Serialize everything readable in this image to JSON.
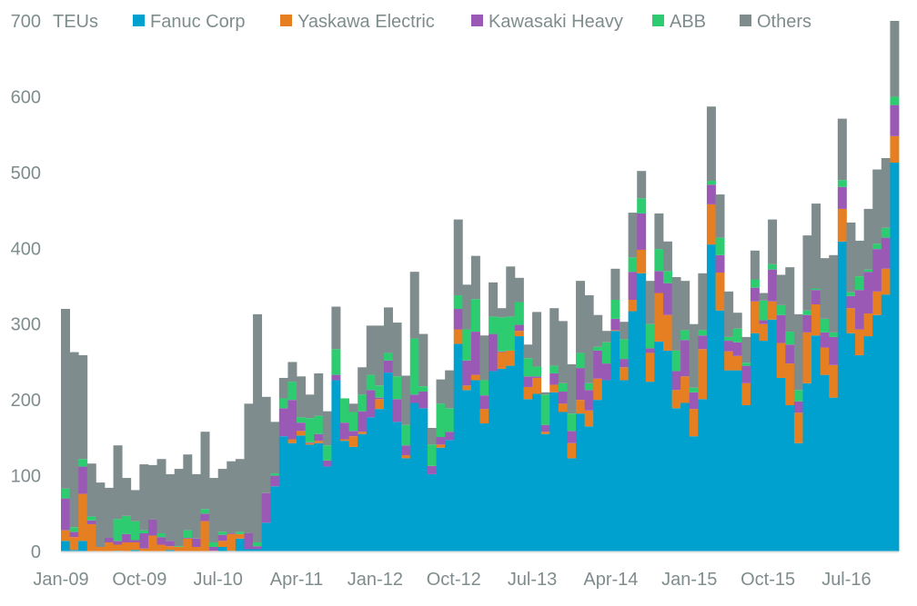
{
  "chart_data": {
    "type": "bar",
    "stacked": true,
    "title": "",
    "ylabel": "TEUs",
    "xlabel": "",
    "ylim": [
      0,
      700
    ],
    "yticks": [
      0,
      100,
      200,
      300,
      400,
      500,
      600,
      700
    ],
    "xtick_labels": [
      "Jan-09",
      "Oct-09",
      "Jul-10",
      "Apr-11",
      "Jan-12",
      "Oct-12",
      "Jul-13",
      "Apr-14",
      "Jan-15",
      "Oct-15",
      "Jul-16"
    ],
    "grid": false,
    "legend_position": "top",
    "categories": [
      "Jan-09",
      "Feb-09",
      "Mar-09",
      "Apr-09",
      "May-09",
      "Jun-09",
      "Jul-09",
      "Aug-09",
      "Sep-09",
      "Oct-09",
      "Nov-09",
      "Dec-09",
      "Jan-10",
      "Feb-10",
      "Mar-10",
      "Apr-10",
      "May-10",
      "Jun-10",
      "Jul-10",
      "Aug-10",
      "Sep-10",
      "Oct-10",
      "Nov-10",
      "Dec-10",
      "Jan-11",
      "Feb-11",
      "Mar-11",
      "Apr-11",
      "May-11",
      "Jun-11",
      "Jul-11",
      "Aug-11",
      "Sep-11",
      "Oct-11",
      "Nov-11",
      "Dec-11",
      "Jan-12",
      "Feb-12",
      "Mar-12",
      "Apr-12",
      "May-12",
      "Jun-12",
      "Jul-12",
      "Aug-12",
      "Sep-12",
      "Oct-12",
      "Nov-12",
      "Dec-12",
      "Jan-13",
      "Feb-13",
      "Mar-13",
      "Apr-13",
      "May-13",
      "Jun-13",
      "Jul-13",
      "Aug-13",
      "Sep-13",
      "Oct-13",
      "Nov-13",
      "Dec-13",
      "Jan-14",
      "Feb-14",
      "Mar-14",
      "Apr-14",
      "May-14",
      "Jun-14",
      "Jul-14",
      "Aug-14",
      "Sep-14",
      "Oct-14",
      "Nov-14",
      "Dec-14",
      "Jan-15",
      "Feb-15",
      "Mar-15",
      "Apr-15",
      "May-15",
      "Jun-15",
      "Jul-15",
      "Aug-15",
      "Sep-15",
      "Oct-15",
      "Nov-15",
      "Dec-15",
      "Jan-16",
      "Feb-16",
      "Mar-16",
      "Apr-16",
      "May-16",
      "Jun-16",
      "Jul-16",
      "Aug-16",
      "Sep-16",
      "Oct-16",
      "Nov-16",
      "Dec-16"
    ],
    "series": [
      {
        "name": "Fanuc Corp",
        "color": "#00a0cf",
        "values": [
          14,
          2,
          14,
          0,
          0,
          0,
          1,
          0,
          2,
          0,
          0,
          0,
          2,
          0,
          0,
          0,
          0,
          0,
          6,
          1,
          17,
          3,
          3,
          38,
          86,
          152,
          143,
          153,
          141,
          143,
          112,
          226,
          146,
          138,
          155,
          177,
          188,
          236,
          171,
          123,
          196,
          189,
          102,
          137,
          147,
          274,
          213,
          226,
          169,
          238,
          241,
          245,
          284,
          201,
          208,
          155,
          210,
          184,
          123,
          182,
          165,
          200,
          226,
          291,
          226,
          317,
          367,
          224,
          277,
          265,
          189,
          196,
          152,
          201,
          405,
          318,
          239,
          239,
          193,
          288,
          278,
          306,
          229,
          193,
          143,
          222,
          285,
          233,
          203,
          409,
          288,
          259,
          284,
          312,
          339,
          513
        ]
      },
      {
        "name": "Yaskawa Electric",
        "color": "#e67e22",
        "values": [
          14,
          17,
          62,
          36,
          6,
          12,
          8,
          12,
          10,
          4,
          21,
          9,
          5,
          6,
          17,
          6,
          40,
          1,
          8,
          22,
          6,
          0,
          0,
          0,
          0,
          0,
          5,
          6,
          2,
          3,
          0,
          0,
          2,
          14,
          3,
          0,
          13,
          0,
          0,
          4,
          0,
          0,
          0,
          4,
          0,
          19,
          6,
          7,
          19,
          0,
          22,
          20,
          7,
          16,
          21,
          3,
          10,
          11,
          20,
          18,
          21,
          28,
          0,
          1,
          17,
          15,
          31,
          38,
          64,
          47,
          24,
          35,
          36,
          66,
          53,
          50,
          25,
          19,
          29,
          42,
          22,
          24,
          46,
          55,
          40,
          67,
          41,
          36,
          43,
          43,
          33,
          34,
          30,
          31,
          34,
          35
        ]
      },
      {
        "name": "Kawasaki Heavy",
        "color": "#9b59b6",
        "values": [
          42,
          7,
          36,
          5,
          0,
          6,
          5,
          11,
          3,
          20,
          21,
          10,
          7,
          0,
          1,
          11,
          10,
          5,
          8,
          1,
          0,
          21,
          4,
          39,
          14,
          37,
          52,
          11,
          1,
          9,
          8,
          7,
          22,
          7,
          27,
          36,
          2,
          16,
          30,
          13,
          11,
          22,
          11,
          10,
          11,
          27,
          33,
          57,
          18,
          49,
          1,
          0,
          8,
          14,
          2,
          9,
          15,
          16,
          16,
          42,
          27,
          37,
          22,
          15,
          11,
          37,
          48,
          6,
          29,
          42,
          25,
          48,
          22,
          18,
          26,
          23,
          14,
          18,
          23,
          18,
          5,
          42,
          37,
          25,
          15,
          23,
          19,
          20,
          37,
          29,
          16,
          52,
          55,
          56,
          41,
          41
        ]
      },
      {
        "name": "ABB",
        "color": "#2ecc71",
        "values": [
          13,
          6,
          10,
          5,
          0,
          0,
          29,
          24,
          25,
          4,
          0,
          5,
          0,
          1,
          10,
          0,
          6,
          6,
          4,
          0,
          3,
          0,
          5,
          0,
          3,
          13,
          24,
          7,
          32,
          24,
          20,
          34,
          32,
          25,
          22,
          20,
          16,
          10,
          30,
          27,
          74,
          7,
          28,
          44,
          31,
          18,
          41,
          43,
          20,
          23,
          45,
          45,
          30,
          24,
          13,
          40,
          10,
          11,
          23,
          20,
          9,
          5,
          28,
          25,
          26,
          19,
          20,
          32,
          29,
          16,
          27,
          13,
          6,
          7,
          5,
          23,
          5,
          18,
          4,
          11,
          26,
          7,
          13,
          17,
          15,
          6,
          2,
          18,
          6,
          9,
          5,
          18,
          3,
          7,
          13,
          11
        ]
      },
      {
        "name": "Others",
        "color": "#7f8c8d",
        "values": [
          237,
          231,
          137,
          70,
          85,
          66,
          97,
          50,
          41,
          87,
          72,
          98,
          88,
          102,
          100,
          85,
          102,
          85,
          83,
          95,
          96,
          171,
          301,
          127,
          68,
          27,
          26,
          54,
          31,
          56,
          45,
          56,
          0,
          11,
          36,
          65,
          79,
          60,
          71,
          65,
          88,
          69,
          22,
          32,
          50,
          100,
          59,
          57,
          59,
          45,
          12,
          66,
          32,
          18,
          72,
          3,
          76,
          82,
          65,
          95,
          116,
          42,
          15,
          41,
          23,
          59,
          36,
          57,
          47,
          39,
          97,
          65,
          84,
          75,
          98,
          57,
          60,
          21,
          34,
          38,
          10,
          59,
          40,
          85,
          100,
          99,
          112,
          80,
          102,
          81,
          92,
          47,
          80,
          98,
          92,
          100
        ]
      }
    ]
  }
}
